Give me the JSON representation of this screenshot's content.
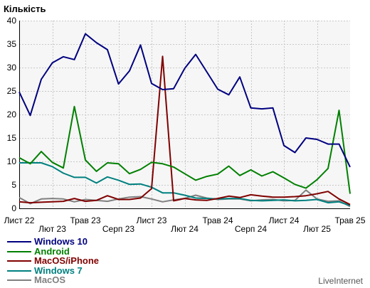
{
  "chart_data": {
    "type": "line",
    "ylabel": "Кількість",
    "ylim": [
      0,
      40
    ],
    "yticks": [
      0,
      5,
      10,
      15,
      20,
      25,
      30,
      35,
      40
    ],
    "grid": true,
    "legend_position": "bottom-left",
    "xtick_labels": [
      "Лист 22",
      "Лют 23",
      "Трав 23",
      "Серп 23",
      "Лист 23",
      "Лют 24",
      "Трав 24",
      "Серп 24",
      "Лист 24",
      "Лют 25",
      "Трав 25"
    ],
    "series": [
      {
        "name": "Windows 10",
        "color": "#000080",
        "values": [
          24.8,
          19.8,
          27.5,
          31,
          32.3,
          31.7,
          37.2,
          35.3,
          33.8,
          26.5,
          29.3,
          34.8,
          26.6,
          25.3,
          25.5,
          29.8,
          32.8,
          29.1,
          25.4,
          24.2,
          28,
          21.4,
          21.2,
          21.4,
          13.4,
          11.9,
          15,
          14.7,
          13.7,
          13.7,
          8.8
        ]
      },
      {
        "name": "Android",
        "color": "#008000",
        "values": [
          10.8,
          9.5,
          12.1,
          9.8,
          8.6,
          21.7,
          10.3,
          7.9,
          9.7,
          9.5,
          7.4,
          8.3,
          9.8,
          9.5,
          8.8,
          7.4,
          6,
          6.8,
          7.3,
          9,
          7,
          8.2,
          6.9,
          7.8,
          6.5,
          5.1,
          4.3,
          6.1,
          8.5,
          20.9,
          3.1
        ]
      },
      {
        "name": "MacOS/iPhone",
        "color": "#800000",
        "values": [
          1.4,
          1.2,
          1.3,
          1.4,
          1.5,
          2.1,
          1.5,
          1.7,
          2.7,
          1.9,
          1.9,
          2.2,
          4.2,
          32.4,
          1.6,
          2.1,
          1.8,
          1.7,
          2.1,
          2.6,
          2.3,
          2.9,
          2.6,
          2.4,
          2.4,
          2.5,
          2.7,
          3.1,
          3.6,
          2,
          0.8
        ]
      },
      {
        "name": "Windows 7",
        "color": "#008080",
        "values": [
          9.7,
          9.7,
          9.7,
          8.9,
          7.5,
          6.6,
          6.6,
          5.4,
          6.7,
          6,
          5.1,
          5.2,
          4.5,
          3.3,
          3.3,
          2.8,
          2.2,
          2.1,
          2,
          2.1,
          2.1,
          1.7,
          1.6,
          1.7,
          1.8,
          1.6,
          1.7,
          1.9,
          1.2,
          1.4,
          0.6
        ]
      },
      {
        "name": "MacOS",
        "color": "#808080",
        "values": [
          2.3,
          1,
          2,
          2.1,
          2,
          1.4,
          1.9,
          1.7,
          1.5,
          2,
          2.4,
          2.5,
          2,
          1.4,
          1.8,
          2.1,
          2.8,
          2.2,
          1.9,
          2,
          2,
          1.6,
          1.8,
          1.9,
          1.6,
          1.7,
          3.9,
          2,
          1.5,
          1.6,
          0.4
        ]
      }
    ]
  },
  "branding": "LiveInternet"
}
